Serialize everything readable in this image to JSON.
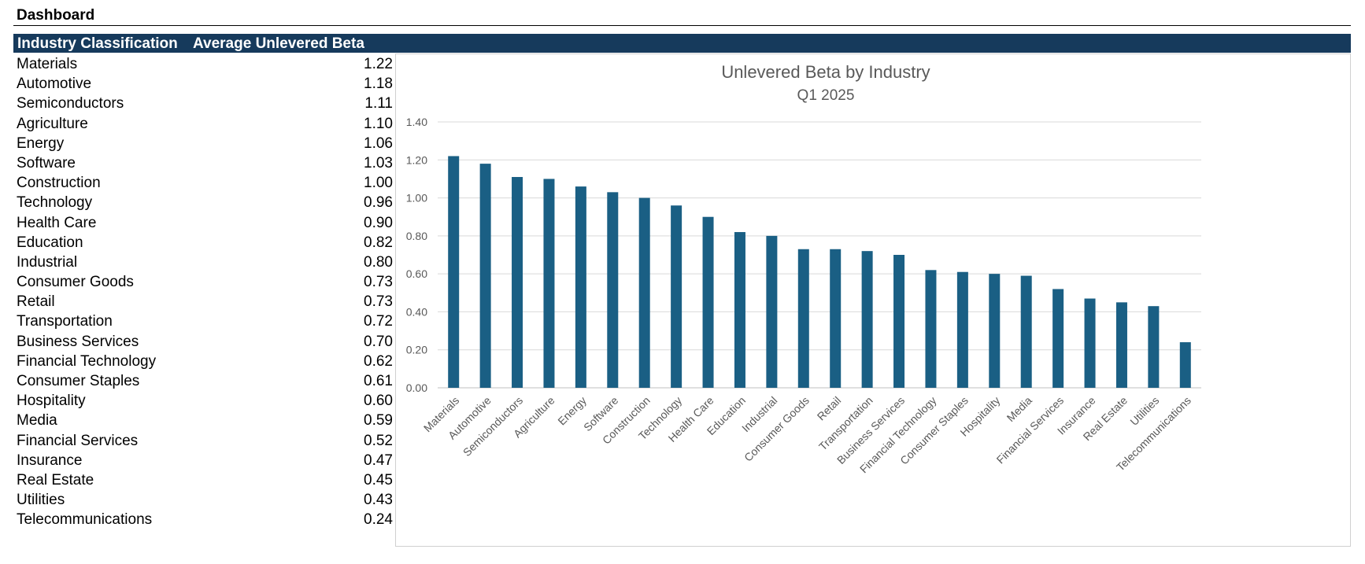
{
  "sheet": {
    "title": "Dashboard"
  },
  "table": {
    "headers": [
      "Industry Classification",
      "Average Unlevered Beta"
    ],
    "rows": [
      {
        "industry": "Materials",
        "beta": "1.22"
      },
      {
        "industry": "Automotive",
        "beta": "1.18"
      },
      {
        "industry": "Semiconductors",
        "beta": "1.11"
      },
      {
        "industry": "Agriculture",
        "beta": "1.10"
      },
      {
        "industry": "Energy",
        "beta": "1.06"
      },
      {
        "industry": "Software",
        "beta": "1.03"
      },
      {
        "industry": "Construction",
        "beta": "1.00"
      },
      {
        "industry": "Technology",
        "beta": "0.96"
      },
      {
        "industry": "Health Care",
        "beta": "0.90"
      },
      {
        "industry": "Education",
        "beta": "0.82"
      },
      {
        "industry": "Industrial",
        "beta": "0.80"
      },
      {
        "industry": "Consumer Goods",
        "beta": "0.73"
      },
      {
        "industry": "Retail",
        "beta": "0.73"
      },
      {
        "industry": "Transportation",
        "beta": "0.72"
      },
      {
        "industry": "Business Services",
        "beta": "0.70"
      },
      {
        "industry": "Financial Technology",
        "beta": "0.62"
      },
      {
        "industry": "Consumer Staples",
        "beta": "0.61"
      },
      {
        "industry": "Hospitality",
        "beta": "0.60"
      },
      {
        "industry": "Media",
        "beta": "0.59"
      },
      {
        "industry": "Financial Services",
        "beta": "0.52"
      },
      {
        "industry": "Insurance",
        "beta": "0.47"
      },
      {
        "industry": "Real Estate",
        "beta": "0.45"
      },
      {
        "industry": "Utilities",
        "beta": "0.43"
      },
      {
        "industry": "Telecommunications",
        "beta": "0.24"
      }
    ]
  },
  "chart_data": {
    "type": "bar",
    "title": "Unlevered Beta by Industry",
    "subtitle": "Q1 2025",
    "categories": [
      "Materials",
      "Automotive",
      "Semiconductors",
      "Agriculture",
      "Energy",
      "Software",
      "Construction",
      "Technology",
      "Health Care",
      "Education",
      "Industrial",
      "Consumer Goods",
      "Retail",
      "Transportation",
      "Business Services",
      "Financial Technology",
      "Consumer Staples",
      "Hospitality",
      "Media",
      "Financial Services",
      "Insurance",
      "Real Estate",
      "Utilities",
      "Telecommunications"
    ],
    "values": [
      1.22,
      1.18,
      1.11,
      1.1,
      1.06,
      1.03,
      1.0,
      0.96,
      0.9,
      0.82,
      0.8,
      0.73,
      0.73,
      0.72,
      0.7,
      0.62,
      0.61,
      0.6,
      0.59,
      0.52,
      0.47,
      0.45,
      0.43,
      0.24
    ],
    "ylim": [
      0,
      1.4
    ],
    "yticks": [
      "0.00",
      "0.20",
      "0.40",
      "0.60",
      "0.80",
      "1.00",
      "1.20",
      "1.40"
    ],
    "grid": true,
    "legend": "none",
    "bar_color": "#1a5f84",
    "grid_color": "#d9d9d9",
    "text_color": "#595959"
  }
}
